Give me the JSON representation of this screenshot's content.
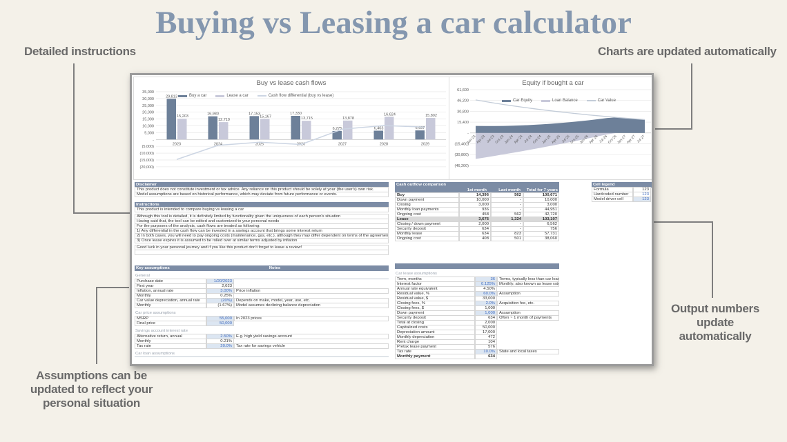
{
  "title": "Buying vs Leasing a car calculator",
  "annotations": {
    "detailed_instructions": "Detailed instructions",
    "charts_updated": "Charts are updated automatically",
    "output_numbers": "Output numbers\nupdate\nautomatically",
    "assumptions": "Assumptions can be\nupdated to reflect your\npersonal situation"
  },
  "colors": {
    "background": "#f4f1e9",
    "title": "#8497af",
    "annotation": "#696969",
    "header": "#7c8ca5",
    "bar_dark": "#6d8099",
    "bar_light": "#c8c9da",
    "diff_line": "#ccd5e3",
    "value_line": "#c3ccd8",
    "blue_input": "#3f6bbf",
    "driver_bg": "#dce6f2"
  },
  "chart_data": [
    {
      "type": "bar",
      "title": "Buy vs lease cash flows",
      "categories": [
        "2023",
        "2024",
        "2025",
        "2026",
        "2027",
        "2028",
        "2029"
      ],
      "series": [
        {
          "name": "Buy a car",
          "kind": "bar",
          "color": "#6d8099",
          "values": [
            29813,
            16980,
            17153,
            17330,
            6275,
            6463,
            6657
          ]
        },
        {
          "name": "Lease a car",
          "kind": "bar",
          "color": "#c8c9da",
          "values": [
            15203,
            12719,
            15167,
            13715,
            13878,
            16624,
            15802
          ]
        },
        {
          "name": "Cash flow differential (buy vs lease)",
          "kind": "line",
          "color": "#ccd5e3",
          "values": [
            -14610,
            -4261,
            -1986,
            -3615,
            7603,
            10161,
            9145
          ]
        }
      ],
      "ylim": [
        -20000,
        35000
      ],
      "ytick": 5000,
      "grid": true,
      "legend_position": "top"
    },
    {
      "type": "area",
      "title": "Equity if bought a car",
      "categories": [
        "Jan-23",
        "Apr-23",
        "Jul-23",
        "Oct-23",
        "Jan-24",
        "Apr-24",
        "Jul-24",
        "Oct-24",
        "Jan-25",
        "Apr-25",
        "Jul-25",
        "Oct-25",
        "Jan-26",
        "Apr-26",
        "Jul-26",
        "Oct-26",
        "Jan-27",
        "Apr-27",
        "Jul-27"
      ],
      "series": [
        {
          "name": "Car Equity",
          "kind": "area",
          "color": "#6d8099",
          "values": [
            10000,
            9800,
            9800,
            10000,
            10400,
            10800,
            11400,
            12200,
            13100,
            14100,
            15300,
            16600,
            18000,
            19600,
            21300,
            22100,
            21000,
            20000,
            19000
          ]
        },
        {
          "name": "Loan Balance",
          "kind": "area",
          "color": "#c8c9da",
          "values": [
            -37000,
            -34900,
            -32700,
            -30400,
            -28100,
            -25800,
            -23400,
            -20900,
            -18400,
            -15800,
            -13200,
            -10500,
            -7700,
            -4900,
            -2000,
            0,
            0,
            0,
            0
          ]
        },
        {
          "name": "Car Value",
          "kind": "line",
          "color": "#c3ccd8",
          "values": [
            47000,
            44700,
            42500,
            40400,
            38500,
            36600,
            34800,
            33100,
            31500,
            29900,
            28500,
            27100,
            25700,
            24500,
            23300,
            22100,
            21000,
            20000,
            19000
          ]
        }
      ],
      "ylim": [
        -46200,
        61600
      ],
      "ytick": 15400,
      "grid": true,
      "legend_position": "top"
    }
  ],
  "tables": {
    "disclaimer": {
      "header": "Disclaimer",
      "rows": [
        {
          "text": "This product does not constitute investment or tax advice. Any reliance on this product should be solely at your (the user's) own risk."
        },
        {
          "text": "Model assumptions are based on historical performance, which may deviate from future performance or events."
        }
      ]
    },
    "instructions": {
      "header": "Instructions",
      "rows": [
        {
          "text": "This product is intended to compare buying vs leasing a car"
        },
        {
          "text": "Although this tool is detailed, it is definitely limited by functionality given the uniqueness of each person's situation",
          "gap": true
        },
        {
          "text": "Having said that, the tool can be edited and customized to your personal needs"
        },
        {
          "text": "For the purposes of the analysis, cash flows are treated as following:"
        },
        {
          "text": "1) Any differential in the cash flow can be invested in a savings account that brings some interest return"
        },
        {
          "text": "2) In both cases, you will need to pay ongoing costs (maintenance, gas, etc.), although they may differ dependent on terms of the agreement"
        },
        {
          "text": "3) Once lease expires it is assumed to be rolled over at similar terms adjusted by inflation"
        },
        {
          "text": "Good luck in your personal journey and if you like this product don't forget to leave a review!",
          "gap": true
        },
        {
          "text": ""
        }
      ]
    },
    "key_assumptions": {
      "header": "Key assumptions",
      "notes_header": "Notes",
      "sections": [
        {
          "name": "General",
          "rows": [
            {
              "label": "Purchase date",
              "value": "1/20/2023",
              "style": "driver",
              "note": ""
            },
            {
              "label": "First year",
              "value": "2,023",
              "note": ""
            },
            {
              "label": "Inflation, annual rate",
              "value": "3.00%",
              "style": "driver",
              "note": "Price inflation"
            },
            {
              "label": "Monthly",
              "value": "0.25%",
              "note": ""
            },
            {
              "label": "Car value depreciation, annual rate",
              "value": "(20%)",
              "style": "driver",
              "note": "Depends on make, model, year, use, etc."
            },
            {
              "label": "Monthly",
              "value": "(1.67%)",
              "note": "Model assumes declining balance depreciation"
            }
          ]
        },
        {
          "name": "Car price assumptions",
          "rows": [
            {
              "label": "MSRP",
              "value": "55,000",
              "style": "driver",
              "note": "In 2023 prices"
            },
            {
              "label": "Final price",
              "value": "50,000",
              "style": "driver",
              "note": ""
            }
          ]
        },
        {
          "name": "Savings account interest rate",
          "rows": [
            {
              "label": "Alternative return, annual",
              "value": "2.50%",
              "style": "driver",
              "note": "E.g. high yield savings account"
            },
            {
              "label": "Monthly",
              "value": "0.21%",
              "note": ""
            },
            {
              "label": "Tax rate",
              "value": "20.0%",
              "style": "driver",
              "note": "Tax rate for savings vehicle"
            }
          ]
        },
        {
          "name": "Car loan assumptions",
          "rows": []
        }
      ]
    },
    "cash_outflow": {
      "header": "Cash outflow comparison",
      "columns": [
        "1st month",
        "Last month",
        "Total for 7 years"
      ],
      "rows": [
        {
          "label": "Buy",
          "values": [
            "14,396",
            "562",
            "100,671"
          ],
          "style": "bold"
        },
        {
          "label": "Down payment",
          "values": [
            "10,000",
            "-",
            "10,000"
          ]
        },
        {
          "label": "Closing",
          "values": [
            "3,000",
            "-",
            "3,000"
          ]
        },
        {
          "label": "Monthly loan payments",
          "values": [
            "936",
            "-",
            "44,951"
          ]
        },
        {
          "label": "Ongoing cost",
          "values": [
            "458",
            "562",
            "42,720"
          ]
        },
        {
          "label": "Lease",
          "values": [
            "3,676",
            "1,324",
            "103,107"
          ],
          "style": "bold gray"
        },
        {
          "label": "Closing / down payment",
          "values": [
            "2,000",
            "-",
            "6,562"
          ]
        },
        {
          "label": "Security deposit",
          "values": [
            "634",
            "-",
            "756"
          ]
        },
        {
          "label": "Monthly lease",
          "values": [
            "634",
            "823",
            "57,731"
          ]
        },
        {
          "label": "Ongoing cost",
          "values": [
            "408",
            "501",
            "38,060"
          ]
        }
      ]
    },
    "car_lease": {
      "section": "Car lease assumptions",
      "rows": [
        {
          "label": "Term, months",
          "value": "36",
          "style": "driver",
          "note": "Terms, typically less than car loan"
        },
        {
          "label": "Interest factor",
          "value": "0.125%",
          "style": "driver",
          "note": "Monthly, also known as lease rate factor"
        },
        {
          "label": "Annual rate equivalent",
          "value": "4.50%",
          "note": ""
        },
        {
          "label": "Residual value, %",
          "value": "60.0%",
          "style": "driver",
          "note": "Assumption"
        },
        {
          "label": "Residual value, $",
          "value": "33,000",
          "note": ""
        },
        {
          "label": "Closing fees, %",
          "value": "2.0%",
          "style": "driver",
          "note": "Acquisition fee, etc."
        },
        {
          "label": "Closing fees, $",
          "value": "1,000",
          "note": ""
        },
        {
          "label": "Down payment",
          "value": "1,000",
          "style": "driver",
          "note": "Assumption"
        },
        {
          "label": "Security deposit",
          "value": "634",
          "note": "Often ~ 1 month of payments"
        },
        {
          "label": "Total at closing",
          "value": "2,000",
          "note": ""
        },
        {
          "label": "Capitalized costs",
          "value": "50,000",
          "note": ""
        },
        {
          "label": "Depreciation amount",
          "value": "17,000",
          "note": ""
        },
        {
          "label": "Monthly depreciation",
          "value": "472",
          "note": ""
        },
        {
          "label": "Rent charge",
          "value": "104",
          "note": ""
        },
        {
          "label": "Pretax lease payment",
          "value": "576",
          "note": ""
        },
        {
          "label": "Tax rate",
          "value": "10.0%",
          "style": "driver",
          "note": "State and local taxes"
        },
        {
          "label": "Monthly payment",
          "value": "634",
          "style": "bold",
          "note": ""
        }
      ]
    },
    "cell_legend": {
      "header": "Cell legend",
      "rows": [
        {
          "label": "Formula",
          "value": "123",
          "style": "formula"
        },
        {
          "label": "Hardcoded number",
          "value": "123",
          "style": "hardcoded"
        },
        {
          "label": "Model driver cell",
          "value": "123",
          "style": "driver"
        }
      ]
    }
  }
}
